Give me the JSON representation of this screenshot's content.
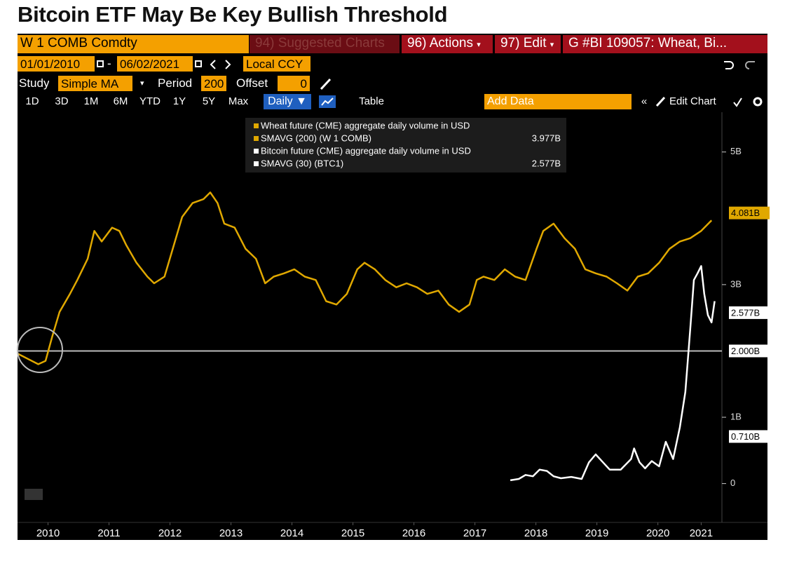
{
  "toolbar": {
    "security": "W 1 COMB Comdty",
    "suggested": "94) Suggested Charts",
    "actions": "96) Actions",
    "edit": "97) Edit",
    "graph": "G #BI 109057: Wheat, Bi...",
    "start_date": "01/01/2010",
    "date_sep": "-",
    "end_date": "06/02/2021",
    "currency": "Local CCY",
    "study_label": "Study",
    "study": "Simple MA",
    "period_label": "Period",
    "period": 200,
    "offset_label": "Offset",
    "offset": 0,
    "ranges": [
      "1D",
      "3D",
      "1M",
      "6M",
      "YTD",
      "1Y",
      "5Y",
      "Max"
    ],
    "frequency": "Daily ▼",
    "table": "Table",
    "add_data": "Add Data",
    "edit_chart": "Edit Chart"
  },
  "chart_data": {
    "type": "line",
    "title": "Bitcoin ETF May Be Key Bullish Threshold",
    "xlim": [
      2010,
      2021.55
    ],
    "xticks": [
      {
        "value": 2010.5,
        "label": "2010"
      },
      {
        "value": 2011.5,
        "label": "2011"
      },
      {
        "value": 2012.5,
        "label": "2012"
      },
      {
        "value": 2013.5,
        "label": "2013"
      },
      {
        "value": 2014.5,
        "label": "2014"
      },
      {
        "value": 2015.5,
        "label": "2015"
      },
      {
        "value": 2016.5,
        "label": "2016"
      },
      {
        "value": 2017.5,
        "label": "2017"
      },
      {
        "value": 2018.5,
        "label": "2018"
      },
      {
        "value": 2019.5,
        "label": "2019"
      },
      {
        "value": 2020.5,
        "label": "2020"
      },
      {
        "value": 2021.21,
        "label": "2021"
      }
    ],
    "ylim": [
      -0.48,
      5.6
    ],
    "yticks": [
      0,
      {
        "value": 1,
        "label": "1B"
      },
      {
        "value": 3,
        "label": "3B"
      },
      {
        "value": 5,
        "label": "5B"
      }
    ],
    "series": [
      {
        "group": "Wheat future (CME) aggregate daily volume in USD",
        "name": "SMAVG (200) (W 1 COMB)",
        "color": "#e0a800",
        "legend_value": {
          "value": 3.977,
          "label": "3.977B"
        },
        "x": [
          2010.0,
          2010.17,
          2010.34,
          2010.46,
          2010.57,
          2010.69,
          2010.86,
          2010.98,
          2011.15,
          2011.26,
          2011.38,
          2011.55,
          2011.67,
          2011.78,
          2011.95,
          2012.13,
          2012.24,
          2012.41,
          2012.53,
          2012.7,
          2012.87,
          2013.05,
          2013.16,
          2013.28,
          2013.39,
          2013.56,
          2013.74,
          2013.91,
          2014.06,
          2014.2,
          2014.37,
          2014.54,
          2014.71,
          2014.89,
          2015.06,
          2015.23,
          2015.4,
          2015.57,
          2015.69,
          2015.86,
          2016.03,
          2016.21,
          2016.38,
          2016.55,
          2016.72,
          2016.9,
          2017.07,
          2017.24,
          2017.41,
          2017.53,
          2017.64,
          2017.82,
          2017.99,
          2018.16,
          2018.33,
          2018.51,
          2018.62,
          2018.79,
          2018.97,
          2019.14,
          2019.31,
          2019.48,
          2019.66,
          2019.83,
          2020.0,
          2020.17,
          2020.34,
          2020.52,
          2020.69,
          2020.86,
          2021.03,
          2021.21,
          2021.38
        ],
        "values": [
          1.96,
          1.88,
          1.8,
          1.85,
          2.22,
          2.59,
          2.86,
          3.07,
          3.39,
          3.81,
          3.65,
          3.86,
          3.81,
          3.6,
          3.33,
          3.12,
          3.02,
          3.12,
          3.49,
          4.02,
          4.23,
          4.29,
          4.39,
          4.23,
          3.92,
          3.86,
          3.54,
          3.39,
          3.02,
          3.12,
          3.17,
          3.23,
          3.12,
          3.07,
          2.75,
          2.7,
          2.86,
          3.23,
          3.33,
          3.23,
          3.07,
          2.96,
          3.02,
          2.96,
          2.86,
          2.91,
          2.7,
          2.59,
          2.7,
          3.07,
          3.12,
          3.07,
          3.23,
          3.12,
          3.07,
          3.54,
          3.81,
          3.92,
          3.7,
          3.54,
          3.23,
          3.17,
          3.12,
          3.02,
          2.91,
          3.12,
          3.17,
          3.33,
          3.54,
          3.65,
          3.7,
          3.81,
          3.97
        ]
      },
      {
        "group": "Bitcoin future (CME) aggregate daily volume in USD",
        "name": "SMAVG (30) (BTC1)",
        "color": "#ffffff",
        "legend_value": {
          "value": 2.577,
          "label": "2.577B"
        },
        "x": [
          2018.08,
          2018.22,
          2018.33,
          2018.45,
          2018.56,
          2018.68,
          2018.79,
          2018.91,
          2019.08,
          2019.25,
          2019.37,
          2019.48,
          2019.6,
          2019.71,
          2019.89,
          2020.06,
          2020.11,
          2020.2,
          2020.29,
          2020.4,
          2020.52,
          2020.63,
          2020.75,
          2020.86,
          2020.95,
          2021.03,
          2021.09,
          2021.15,
          2021.21,
          2021.26,
          2021.32,
          2021.38,
          2021.43
        ],
        "values": [
          0.05,
          0.07,
          0.13,
          0.11,
          0.21,
          0.19,
          0.11,
          0.08,
          0.1,
          0.07,
          0.32,
          0.44,
          0.32,
          0.21,
          0.21,
          0.37,
          0.53,
          0.32,
          0.23,
          0.34,
          0.26,
          0.63,
          0.37,
          0.85,
          1.38,
          2.33,
          3.07,
          3.17,
          3.28,
          2.86,
          2.54,
          2.43,
          2.75
        ]
      }
    ],
    "annotations": [
      {
        "value": 4.081,
        "label": "4.081B",
        "color": "#e0a800",
        "line": false
      },
      {
        "value": 2.577,
        "label": "2.577B",
        "color": "#ffffff",
        "line": false
      },
      {
        "value": 2,
        "label": "2.000B",
        "color": "#ffffff",
        "line": true
      },
      {
        "value": 0.71,
        "label": "0.710B",
        "color": "#ffffff",
        "line": false
      }
    ]
  }
}
